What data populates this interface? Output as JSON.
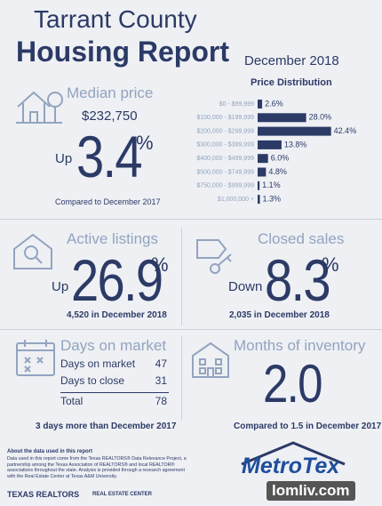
{
  "header": {
    "title_line1": "Tarrant County",
    "title_line2": "Housing Report",
    "date": "December 2018"
  },
  "median_price": {
    "label": "Median price",
    "price": "$232,750",
    "direction": "Up",
    "change": 3.4,
    "unit": "%",
    "compare": "Compared to December 2017"
  },
  "price_distribution": {
    "title": "Price Distribution",
    "categories": [
      "$0 - $99,999",
      "$100,000 - $199,999",
      "$200,000 - $299,999",
      "$300,000 - $399,999",
      "$400,000 - $499,999",
      "$500,000 - $749,999",
      "$750,000 - $999,999",
      "$1,000,000 +"
    ],
    "values": [
      2.6,
      28.0,
      42.4,
      13.8,
      6.0,
      4.8,
      1.1,
      1.3
    ],
    "value_labels": [
      "2.6%",
      "28.0%",
      "42.4%",
      "13.8%",
      "6.0%",
      "4.8%",
      "1.1%",
      "1.3%"
    ],
    "color": "#2c3a66"
  },
  "active_listings": {
    "label": "Active listings",
    "direction": "Up",
    "change": 26.9,
    "unit": "%",
    "note": "4,520 in December 2018"
  },
  "closed_sales": {
    "label": "Closed sales",
    "direction": "Down",
    "change": 8.3,
    "unit": "%",
    "note": "2,035 in December 2018"
  },
  "days_on_market": {
    "label": "Days on market",
    "rows": [
      [
        "Days on market",
        47
      ],
      [
        "Days to close",
        31
      ],
      [
        "Total",
        78
      ]
    ],
    "note": "3 days more than December 2017"
  },
  "months_of_inventory": {
    "label": "Months of inventory",
    "value": "2.0",
    "note": "Compared to 1.5 in December 2017"
  },
  "footer": {
    "about_title": "About the data used in this report",
    "about_text": "Data used in this report come from the Texas REALTORS® Data Relevance Project, a partnership among the Texas Association of REALTORS® and local REALTOR® associations throughout the state. Analysis is provided through a research agreement with the Real Estate Center at Texas A&M University.",
    "logo_texas_realtors": "TEXAS REALTORS",
    "logo_real_estate_center": "REAL ESTATE CENTER",
    "logo_metrotex": "MetroTex",
    "watermark": "lomliv.com"
  }
}
